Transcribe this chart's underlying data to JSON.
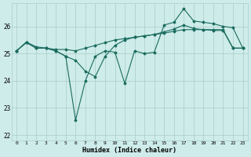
{
  "xlabel": "Humidex (Indice chaleur)",
  "bg_color": "#ceecea",
  "line_color": "#1a6b5e",
  "grid_color": "#aaccca",
  "xlim": [
    -0.5,
    23.5
  ],
  "ylim": [
    21.8,
    26.85
  ],
  "yticks": [
    22,
    23,
    24,
    25,
    26
  ],
  "xticks": [
    0,
    1,
    2,
    3,
    4,
    5,
    6,
    7,
    8,
    9,
    10,
    11,
    12,
    13,
    14,
    15,
    16,
    17,
    18,
    19,
    20,
    21,
    22,
    23
  ],
  "xtick_labels": [
    "0",
    "1",
    "2",
    "3",
    "4",
    "5",
    "6",
    "7",
    "8",
    "9",
    "10",
    "11",
    "12",
    "13",
    "14",
    "15",
    "16",
    "17",
    "18",
    "19",
    "20",
    "21",
    "22",
    "23"
  ],
  "series1": {
    "x": [
      0,
      1,
      2,
      3,
      4,
      5,
      6,
      7,
      8,
      9,
      10,
      11,
      12,
      13,
      14,
      15,
      16,
      17,
      18,
      19,
      20,
      21,
      22,
      23
    ],
    "y": [
      25.1,
      25.4,
      25.2,
      25.2,
      25.15,
      25.15,
      25.1,
      25.2,
      25.3,
      25.4,
      25.5,
      25.55,
      25.6,
      25.65,
      25.7,
      25.75,
      25.82,
      25.88,
      25.88,
      25.88,
      25.85,
      25.85,
      25.2,
      25.2
    ]
  },
  "series2": {
    "x": [
      0,
      1,
      2,
      3,
      4,
      5,
      6,
      7,
      8,
      9,
      10,
      11,
      12,
      13,
      14,
      15,
      16,
      17,
      18,
      19,
      20,
      21,
      22,
      23
    ],
    "y": [
      25.1,
      25.42,
      25.25,
      25.2,
      25.1,
      24.9,
      24.75,
      24.35,
      24.15,
      24.9,
      25.3,
      25.5,
      25.6,
      25.65,
      25.7,
      25.8,
      25.9,
      26.05,
      25.92,
      25.88,
      25.88,
      25.88,
      25.2,
      25.2
    ]
  },
  "series3": {
    "x": [
      0,
      1,
      2,
      3,
      4,
      5,
      6,
      7,
      8,
      9,
      10,
      11,
      12,
      13,
      14,
      15,
      16,
      17,
      18,
      19,
      20,
      21,
      22,
      23
    ],
    "y": [
      25.1,
      25.42,
      25.2,
      25.2,
      25.1,
      24.9,
      22.55,
      24.0,
      24.9,
      25.1,
      25.05,
      23.9,
      25.1,
      25.0,
      25.05,
      26.05,
      26.15,
      26.65,
      26.2,
      26.15,
      26.1,
      26.0,
      25.95,
      25.2
    ]
  }
}
